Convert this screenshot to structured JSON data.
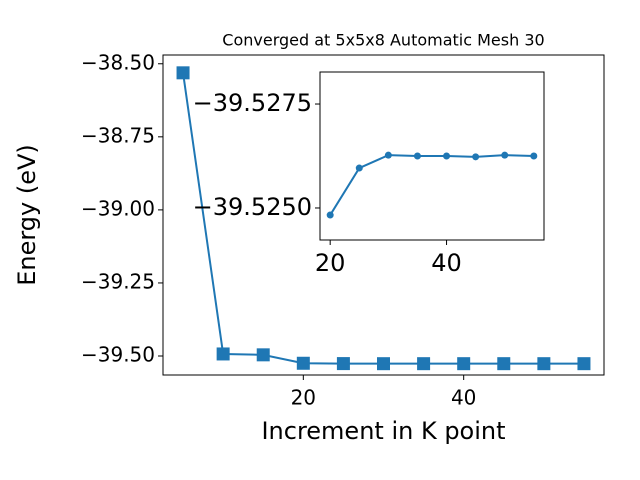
{
  "chart_data": [
    {
      "type": "line",
      "title": "Converged at 5x5x8 Automatic Mesh 30",
      "x_label": "Increment in K point",
      "y_label": "Energy (eV)",
      "x": [
        5,
        10,
        15,
        20,
        25,
        30,
        35,
        40,
        45,
        50,
        55
      ],
      "series": [
        {
          "color": "#1f77b4",
          "marker": "square",
          "values": [
            -38.531,
            -39.493,
            -39.496,
            -39.52483,
            -39.52596,
            -39.52627,
            -39.52625,
            -39.52625,
            -39.52623,
            -39.52627,
            -39.52625
          ]
        }
      ],
      "xlim": [
        2.5,
        57.5
      ],
      "xticks": [
        20,
        40
      ],
      "ylim": [
        -39.565,
        -38.47
      ],
      "yticks": [
        {
          "value": -39.5,
          "label": "−39.50"
        },
        {
          "value": -39.25,
          "label": "−39.25"
        },
        {
          "value": -39.0,
          "label": "−39.00"
        },
        {
          "value": -38.75,
          "label": "−38.75"
        },
        {
          "value": -38.5,
          "label": "−38.50"
        }
      ]
    },
    {
      "type": "line",
      "x": [
        20,
        25,
        30,
        35,
        40,
        45,
        50,
        55
      ],
      "series": [
        {
          "color": "#1f77b4",
          "marker": "circle",
          "values": [
            -39.52483,
            -39.52596,
            -39.52627,
            -39.52625,
            -39.52625,
            -39.52623,
            -39.52627,
            -39.52625
          ]
        }
      ],
      "xlim": [
        18.25,
        56.75
      ],
      "xticks": [
        20,
        40
      ],
      "ylim": [
        -39.52423,
        -39.52827
      ],
      "yticks": [
        {
          "value": -39.525,
          "label": "−39.5250"
        },
        {
          "value": -39.5275,
          "label": "−39.5275"
        }
      ]
    }
  ]
}
